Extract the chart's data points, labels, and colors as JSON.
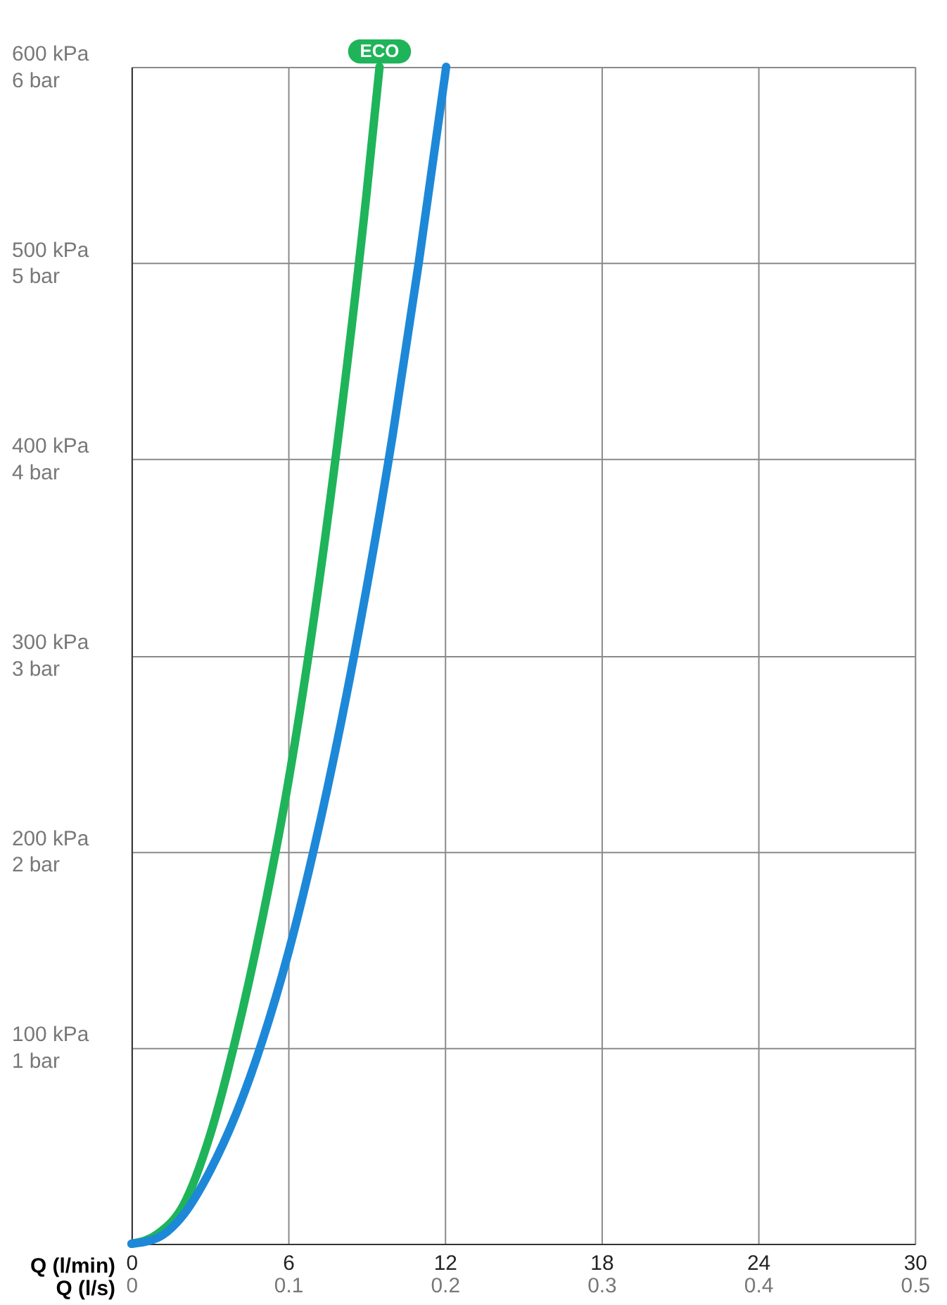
{
  "chart_data": {
    "type": "line",
    "xlabel": "Q (l/min)",
    "x2label": "Q (l/s)",
    "xlim": [
      0,
      30
    ],
    "xticks": [
      0,
      6,
      12,
      18,
      24,
      30
    ],
    "x2lim": [
      0,
      0.5
    ],
    "x2ticks": [
      0,
      0.1,
      0.2,
      0.3,
      0.4,
      0.5
    ],
    "ylim": [
      0,
      600
    ],
    "yticks": [
      {
        "value": 0,
        "label": null
      },
      {
        "value": 100,
        "label": "100 kPa"
      },
      {
        "value": 200,
        "label": "200 kPa"
      },
      {
        "value": 300,
        "label": "300 kPa"
      },
      {
        "value": 400,
        "label": "400 kPa"
      },
      {
        "value": 500,
        "label": "500 kPa"
      },
      {
        "value": 600,
        "label": "600 kPa"
      }
    ],
    "y2lim": [
      0,
      6
    ],
    "y2ticks": [
      {
        "value": 0,
        "label": null
      },
      {
        "value": 1,
        "label": "1 bar"
      },
      {
        "value": 2,
        "label": "2 bar"
      },
      {
        "value": 3,
        "label": "3 bar"
      },
      {
        "value": 4,
        "label": "4 bar"
      },
      {
        "value": 5,
        "label": "5 bar"
      },
      {
        "value": 6,
        "label": "6 bar"
      }
    ],
    "grid": true,
    "legend": false,
    "line_style": "solid",
    "marker": "none",
    "series": [
      {
        "name": "ECO",
        "color": "#1fb45a",
        "x": [
          0,
          1,
          2,
          3,
          4,
          5,
          6,
          7,
          8,
          9,
          9.5
        ],
        "values": [
          0,
          5,
          20,
          55,
          105,
          165,
          235,
          320,
          420,
          535,
          600
        ]
      },
      {
        "color": "#1e88d8",
        "x": [
          0,
          1,
          2,
          3,
          4,
          5,
          6,
          7,
          8,
          9,
          10,
          11,
          12,
          12.05
        ],
        "values": [
          0,
          3,
          15,
          37,
          66,
          103,
          148,
          202,
          264,
          334,
          412,
          500,
          595,
          600
        ]
      }
    ]
  }
}
